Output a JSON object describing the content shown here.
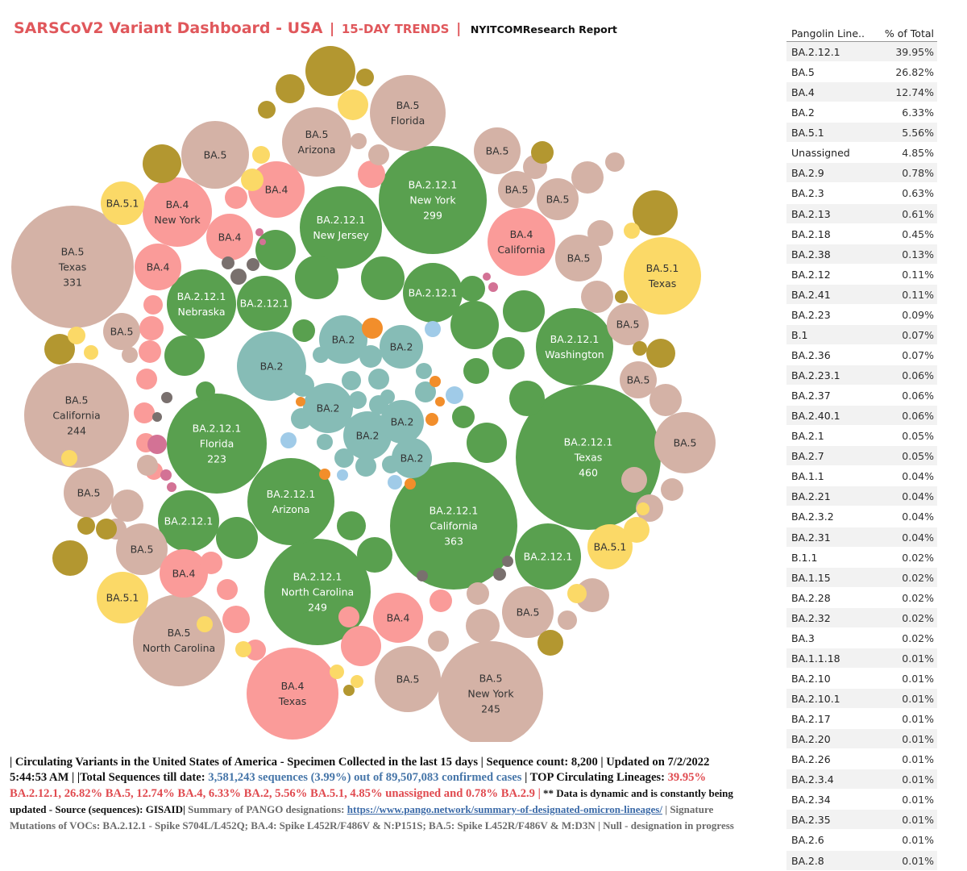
{
  "header": {
    "title": "SARSCoV2 Variant Dashboard - USA",
    "separator": "|",
    "subtitle": "15-DAY TRENDS",
    "report": "NYITCOMResearch Report"
  },
  "colors": {
    "BA.2.12.1": "#59a04f",
    "BA.5": "#d4b2a6",
    "BA.4": "#fa9b99",
    "BA.2": "#86bcb6",
    "BA.5.1": "#fbd967",
    "BA.2.9": "#b39730",
    "BA.2.3": "#f28e2b",
    "BA.2.13": "#a0cbe8",
    "BA.2.18": "#79706e",
    "other": "#d37295"
  },
  "chart_data": {
    "type": "packed-bubble",
    "description_label": "Circulating lineage sequence counts by US state",
    "bubbles": [
      {
        "lineage": "BA.2.12.1",
        "state": "Texas",
        "count": 460,
        "label": true
      },
      {
        "lineage": "BA.2.12.1",
        "state": "California",
        "count": 363,
        "label": true
      },
      {
        "lineage": "BA.5",
        "state": "Texas",
        "count": 331,
        "label": true
      },
      {
        "lineage": "BA.2.12.1",
        "state": "New York",
        "count": 299,
        "label": true
      },
      {
        "lineage": "BA.2.12.1",
        "state": "North Carolina",
        "count": 249,
        "label": true
      },
      {
        "lineage": "BA.5",
        "state": "New York",
        "count": 245,
        "label": true
      },
      {
        "lineage": "BA.5",
        "state": "California",
        "count": 244,
        "label": true
      },
      {
        "lineage": "BA.2.12.1",
        "state": "Florida",
        "count": 223,
        "label": true
      },
      {
        "lineage": "BA.5",
        "state": "North Carolina",
        "count": 170,
        "label": true
      },
      {
        "lineage": "BA.4",
        "state": "Texas",
        "count": 165,
        "label": true
      },
      {
        "lineage": "BA.2.12.1",
        "state": "Arizona",
        "count": 150,
        "label": true
      },
      {
        "lineage": "BA.2.12.1",
        "state": "New Jersey",
        "count": 130,
        "label": true
      },
      {
        "lineage": "BA.2.12.1",
        "state": "Washington",
        "count": 112,
        "label": true
      },
      {
        "lineage": "BA.5",
        "state": "Florida",
        "count": 105,
        "label": true
      },
      {
        "lineage": "BA.2.12.1",
        "state": "Nebraska",
        "count": 98,
        "label": true
      },
      {
        "lineage": "BA.2",
        "state": "",
        "count": 80,
        "label": true
      },
      {
        "lineage": "BA.4",
        "state": "California",
        "count": 80,
        "label": true
      },
      {
        "lineage": "BA.5.1",
        "state": "Texas",
        "count": 80,
        "label": true
      },
      {
        "lineage": "BA.4",
        "state": "New York",
        "count": 80,
        "label": true
      },
      {
        "lineage": "BA.5",
        "state": "Arizona",
        "count": 80,
        "label": true
      }
    ]
  },
  "bubble_labels": {
    "BA.2.12.1": "BA.2.12.1",
    "BA.5": "BA.5",
    "BA.4": "BA.4",
    "BA.2": "BA.2",
    "BA.5.1": "BA.5.1"
  },
  "sidebar": {
    "col_lineage": "Pangolin Line..",
    "col_pct": "% of Total",
    "rows": [
      {
        "lineage": "BA.2.12.1",
        "pct": "39.95%"
      },
      {
        "lineage": "BA.5",
        "pct": "26.82%"
      },
      {
        "lineage": "BA.4",
        "pct": "12.74%"
      },
      {
        "lineage": "BA.2",
        "pct": "6.33%"
      },
      {
        "lineage": "BA.5.1",
        "pct": "5.56%"
      },
      {
        "lineage": "Unassigned",
        "pct": "4.85%"
      },
      {
        "lineage": "BA.2.9",
        "pct": "0.78%"
      },
      {
        "lineage": "BA.2.3",
        "pct": "0.63%"
      },
      {
        "lineage": "BA.2.13",
        "pct": "0.61%"
      },
      {
        "lineage": "BA.2.18",
        "pct": "0.45%"
      },
      {
        "lineage": "BA.2.38",
        "pct": "0.13%"
      },
      {
        "lineage": "BA.2.12",
        "pct": "0.11%"
      },
      {
        "lineage": "BA.2.41",
        "pct": "0.11%"
      },
      {
        "lineage": "BA.2.23",
        "pct": "0.09%"
      },
      {
        "lineage": "B.1",
        "pct": "0.07%"
      },
      {
        "lineage": "BA.2.36",
        "pct": "0.07%"
      },
      {
        "lineage": "BA.2.23.1",
        "pct": "0.06%"
      },
      {
        "lineage": "BA.2.37",
        "pct": "0.06%"
      },
      {
        "lineage": "BA.2.40.1",
        "pct": "0.06%"
      },
      {
        "lineage": "BA.2.1",
        "pct": "0.05%"
      },
      {
        "lineage": "BA.2.7",
        "pct": "0.05%"
      },
      {
        "lineage": "BA.1.1",
        "pct": "0.04%"
      },
      {
        "lineage": "BA.2.21",
        "pct": "0.04%"
      },
      {
        "lineage": "BA.2.3.2",
        "pct": "0.04%"
      },
      {
        "lineage": "BA.2.31",
        "pct": "0.04%"
      },
      {
        "lineage": "B.1.1",
        "pct": "0.02%"
      },
      {
        "lineage": "BA.1.15",
        "pct": "0.02%"
      },
      {
        "lineage": "BA.2.28",
        "pct": "0.02%"
      },
      {
        "lineage": "BA.2.32",
        "pct": "0.02%"
      },
      {
        "lineage": "BA.3",
        "pct": "0.02%"
      },
      {
        "lineage": "BA.1.1.18",
        "pct": "0.01%"
      },
      {
        "lineage": "BA.2.10",
        "pct": "0.01%"
      },
      {
        "lineage": "BA.2.10.1",
        "pct": "0.01%"
      },
      {
        "lineage": "BA.2.17",
        "pct": "0.01%"
      },
      {
        "lineage": "BA.2.20",
        "pct": "0.01%"
      },
      {
        "lineage": "BA.2.26",
        "pct": "0.01%"
      },
      {
        "lineage": "BA.2.3.4",
        "pct": "0.01%"
      },
      {
        "lineage": "BA.2.34",
        "pct": "0.01%"
      },
      {
        "lineage": "BA.2.35",
        "pct": "0.01%"
      },
      {
        "lineage": "BA.2.6",
        "pct": "0.01%"
      },
      {
        "lineage": "BA.2.8",
        "pct": "0.01%"
      }
    ]
  },
  "footer": {
    "p1": "| Circulating Variants in the United States of America - Specimen Collected in the last 15 days | Sequence count: 8,200 |  Updated on 7/2/2022 5:44:53 AM |  |Total Sequences till date: ",
    "p2": "3,581,243 sequences (3.99%) out of 89,507,083 confirmed cases",
    "p3": " | TOP Circulating Lineages: ",
    "p4": "39.95% BA.2.12.1, 26.82% BA.5, 12.74% BA.4, 6.33% BA.2, 5.56% BA.5.1, 4.85% unassigned and 0.78% BA.2.9 |",
    "p5": "  ** Data is dynamic and is constantly being updated - Source (sequences): GISAID|",
    "p6": " Summary of PANGO designations: ",
    "link": "https://www.pango.network/summary-of-designated-omicron-lineages/",
    "p7": " | Signature Mutations of  VOCs: BA.2.12.1 - Spike S704L/L452Q; BA.4: Spike L452R/F486V & N:P151S; BA.5: Spike L452R/F486V & M:D3N | Null - designation in progress"
  }
}
